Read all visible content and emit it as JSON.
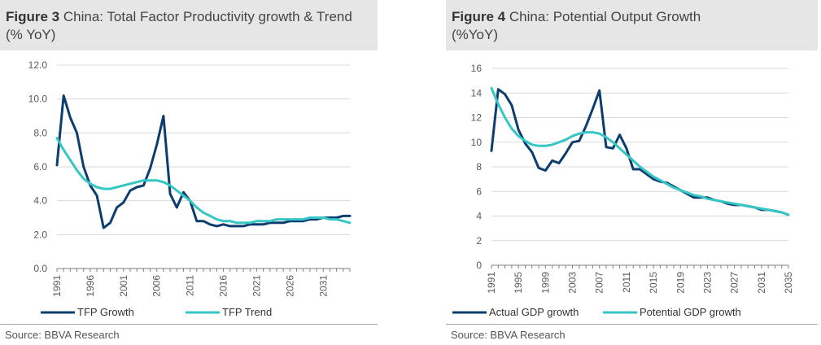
{
  "figures": [
    {
      "figure_label": "Figure 3",
      "title_line1": "China: Total Factor Productivity growth & Trend",
      "title_line2": "(% YoY)",
      "source": "Source: BBVA Research"
    },
    {
      "figure_label": "Figure 4",
      "title_line1": "China: Potential Output Growth",
      "title_line2": "(%YoY)",
      "source": "Source: BBVA Research"
    }
  ],
  "chart_data": [
    {
      "type": "line",
      "title": "China: Total Factor Productivity growth & Trend",
      "ylim": [
        0,
        12
      ],
      "y_ticks": [
        "0.0",
        "2.0",
        "4.0",
        "6.0",
        "8.0",
        "10.0",
        "12.0"
      ],
      "y_tick_values": [
        0,
        2,
        4,
        6,
        8,
        10,
        12
      ],
      "x_ticks": [
        "1991",
        "1996",
        "2001",
        "2006",
        "2011",
        "2016",
        "2021",
        "2026",
        "2031"
      ],
      "x": [
        1991,
        1992,
        1993,
        1994,
        1995,
        1996,
        1997,
        1998,
        1999,
        2000,
        2001,
        2002,
        2003,
        2004,
        2005,
        2006,
        2007,
        2008,
        2009,
        2010,
        2011,
        2012,
        2013,
        2014,
        2015,
        2016,
        2017,
        2018,
        2019,
        2020,
        2021,
        2022,
        2023,
        2024,
        2025,
        2026,
        2027,
        2028,
        2029,
        2030,
        2031,
        2032,
        2033,
        2034,
        2035
      ],
      "grid": true,
      "legend_position": "bottom",
      "series": [
        {
          "name": "TFP Growth",
          "color": "#0d3c6e",
          "values": [
            6.1,
            10.2,
            8.9,
            8.0,
            6.0,
            4.9,
            4.3,
            2.4,
            2.7,
            3.6,
            3.9,
            4.6,
            4.8,
            4.9,
            5.9,
            7.3,
            9.0,
            4.4,
            3.6,
            4.5,
            4.0,
            2.8,
            2.8,
            2.6,
            2.5,
            2.6,
            2.5,
            2.5,
            2.5,
            2.6,
            2.6,
            2.6,
            2.7,
            2.7,
            2.7,
            2.8,
            2.8,
            2.8,
            2.9,
            2.9,
            3.0,
            3.0,
            3.0,
            3.1,
            3.1
          ]
        },
        {
          "name": "TFP Trend",
          "color": "#36c6c6",
          "values": [
            7.7,
            7.0,
            6.4,
            5.8,
            5.3,
            5.0,
            4.8,
            4.7,
            4.7,
            4.8,
            4.9,
            5.0,
            5.1,
            5.2,
            5.2,
            5.2,
            5.1,
            4.9,
            4.6,
            4.3,
            4.0,
            3.6,
            3.3,
            3.1,
            2.9,
            2.8,
            2.8,
            2.7,
            2.7,
            2.7,
            2.8,
            2.8,
            2.8,
            2.9,
            2.9,
            2.9,
            2.9,
            2.9,
            3.0,
            3.0,
            3.0,
            2.9,
            2.9,
            2.8,
            2.7
          ]
        }
      ]
    },
    {
      "type": "line",
      "title": "China: Potential Output Growth",
      "ylim": [
        0,
        16
      ],
      "y_ticks": [
        "0",
        "2",
        "4",
        "6",
        "8",
        "10",
        "12",
        "14",
        "16"
      ],
      "y_tick_values": [
        0,
        2,
        4,
        6,
        8,
        10,
        12,
        14,
        16
      ],
      "x_ticks": [
        "1991",
        "1995",
        "1999",
        "2003",
        "2007",
        "2011",
        "2015",
        "2019",
        "2023",
        "2027",
        "2031",
        "2035"
      ],
      "x": [
        1991,
        1992,
        1993,
        1994,
        1995,
        1996,
        1997,
        1998,
        1999,
        2000,
        2001,
        2002,
        2003,
        2004,
        2005,
        2006,
        2007,
        2008,
        2009,
        2010,
        2011,
        2012,
        2013,
        2014,
        2015,
        2016,
        2017,
        2018,
        2019,
        2020,
        2021,
        2022,
        2023,
        2024,
        2025,
        2026,
        2027,
        2028,
        2029,
        2030,
        2031,
        2032,
        2033,
        2034,
        2035
      ],
      "grid": true,
      "legend_position": "bottom",
      "series": [
        {
          "name": "Actual GDP growth",
          "color": "#0d3c6e",
          "values": [
            9.3,
            14.3,
            13.9,
            13.0,
            11.0,
            9.9,
            9.2,
            7.9,
            7.7,
            8.5,
            8.3,
            9.1,
            10.0,
            10.1,
            11.3,
            12.7,
            14.2,
            9.6,
            9.5,
            10.6,
            9.5,
            7.8,
            7.8,
            7.4,
            7.0,
            6.8,
            6.7,
            6.4,
            6.1,
            5.8,
            5.5,
            5.5,
            5.5,
            5.3,
            5.2,
            5.0,
            4.9,
            4.9,
            4.8,
            4.7,
            4.5,
            4.5,
            4.4,
            4.3,
            4.1
          ]
        },
        {
          "name": "Potential GDP growth",
          "color": "#36c6c6",
          "values": [
            14.4,
            13.1,
            12.0,
            11.1,
            10.5,
            10.1,
            9.8,
            9.7,
            9.7,
            9.8,
            10.0,
            10.2,
            10.5,
            10.7,
            10.8,
            10.8,
            10.7,
            10.4,
            10.0,
            9.5,
            9.0,
            8.5,
            8.0,
            7.6,
            7.2,
            6.9,
            6.6,
            6.3,
            6.1,
            5.9,
            5.7,
            5.6,
            5.4,
            5.3,
            5.2,
            5.1,
            5.0,
            4.9,
            4.8,
            4.7,
            4.6,
            4.5,
            4.4,
            4.3,
            4.1
          ]
        }
      ]
    }
  ]
}
